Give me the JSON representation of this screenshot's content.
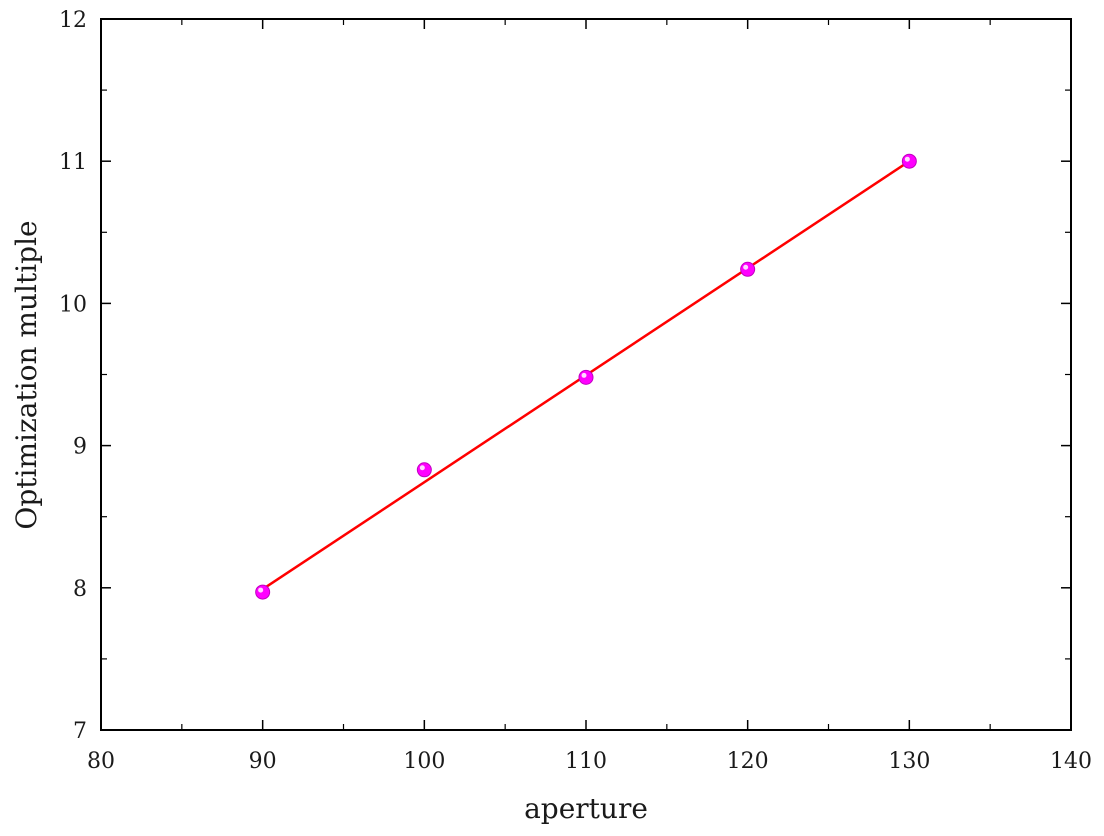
{
  "chart_data": {
    "type": "scatter",
    "title": "",
    "xlabel": "aperture",
    "ylabel": "Optimization multiple",
    "xlim": [
      80,
      140
    ],
    "ylim": [
      7,
      12
    ],
    "x_ticks": [
      80,
      90,
      100,
      110,
      120,
      130,
      140
    ],
    "y_ticks": [
      7,
      8,
      9,
      10,
      11,
      12
    ],
    "x_tick_labels": [
      "80",
      "90",
      "100",
      "110",
      "120",
      "130",
      "140"
    ],
    "y_tick_labels": [
      "7",
      "8",
      "9",
      "10",
      "11",
      "12"
    ],
    "grid": false,
    "legend": "none",
    "series": [
      {
        "kind": "points",
        "color": "#ff00ff",
        "x": [
          90,
          100,
          110,
          120,
          130
        ],
        "y": [
          7.97,
          8.83,
          9.48,
          10.24,
          11.0
        ]
      },
      {
        "kind": "fit-line",
        "color": "#ff0000",
        "x": [
          90,
          130
        ],
        "y": [
          7.99,
          11.0
        ]
      }
    ]
  }
}
